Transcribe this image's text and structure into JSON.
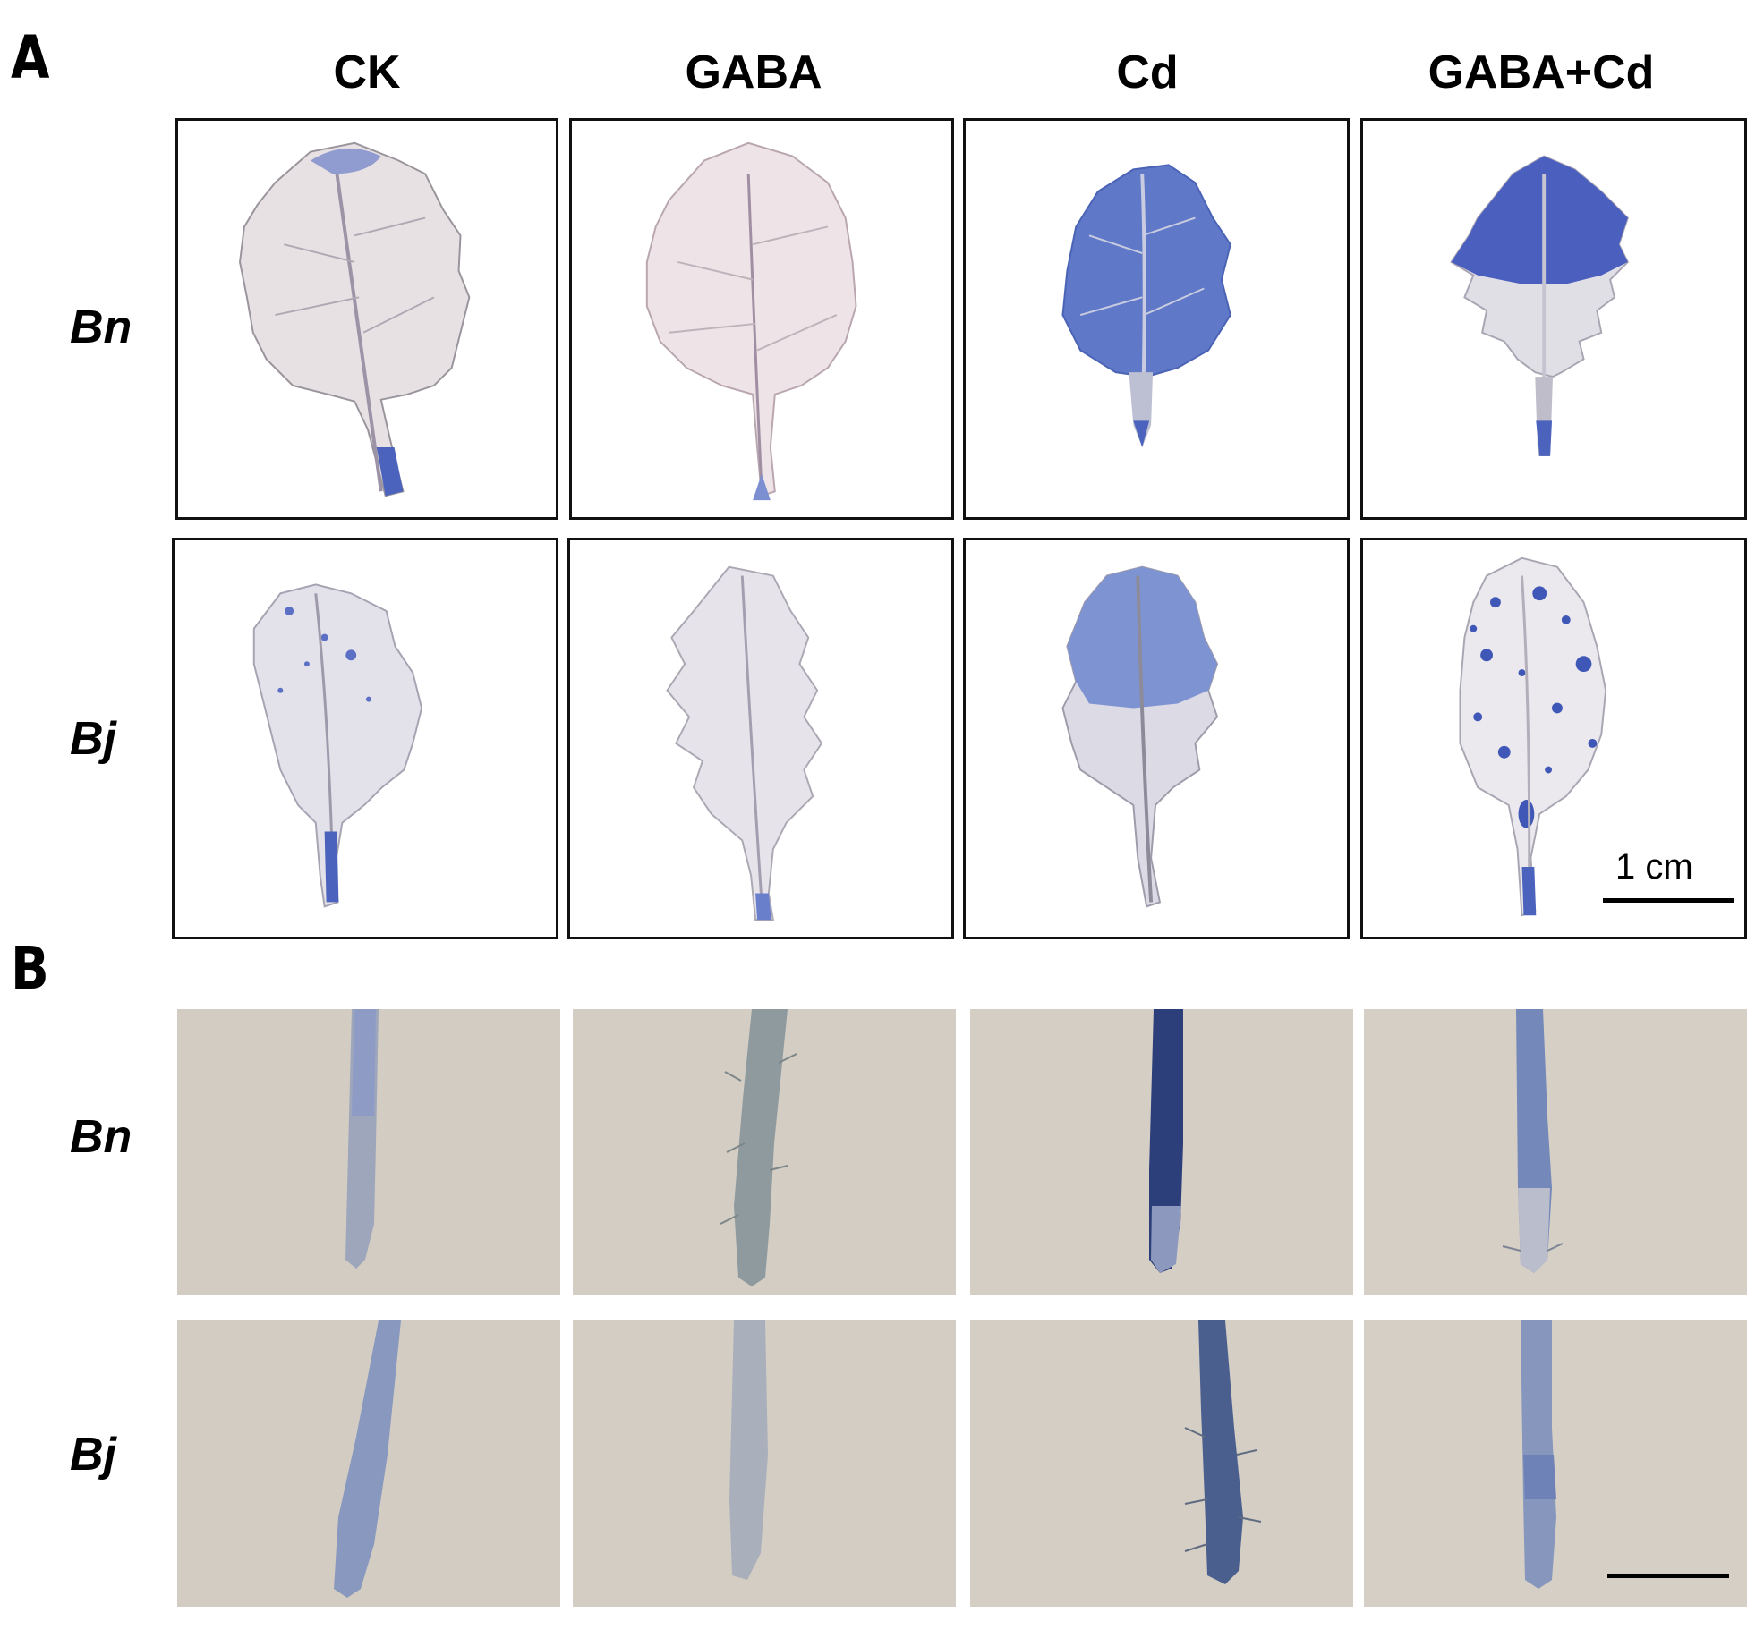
{
  "panels": {
    "a": {
      "letter": "A"
    },
    "b": {
      "letter": "B"
    }
  },
  "columns": [
    "CK",
    "GABA",
    "Cd",
    "GABA+Cd"
  ],
  "rows": {
    "a": [
      "Bn",
      "Bj"
    ],
    "b": [
      "Bn",
      "Bj"
    ]
  },
  "scale_bar": {
    "label": "1 cm"
  },
  "colors": {
    "frame": "#111111",
    "stain_blue": "#3f57b6",
    "leaf_pale": "#ece7ea",
    "root_background": "#d2ccc2"
  },
  "leaves": [
    {
      "treatment": "CK",
      "species": "Bn",
      "staining": "light, blue at tip and petiole"
    },
    {
      "treatment": "GABA",
      "species": "Bn",
      "staining": "none, pinkish leaf"
    },
    {
      "treatment": "Cd",
      "species": "Bn",
      "staining": "strong blue"
    },
    {
      "treatment": "GABA+Cd",
      "species": "Bn",
      "staining": "strong blue upper half"
    },
    {
      "treatment": "CK",
      "species": "Bj",
      "staining": "light blue spots"
    },
    {
      "treatment": "GABA",
      "species": "Bj",
      "staining": "none"
    },
    {
      "treatment": "Cd",
      "species": "Bj",
      "staining": "moderate blue upper half"
    },
    {
      "treatment": "GABA+Cd",
      "species": "Bj",
      "staining": "blue speckles"
    }
  ],
  "roots": [
    {
      "treatment": "CK",
      "species": "Bn",
      "staining": "light"
    },
    {
      "treatment": "GABA",
      "species": "Bn",
      "staining": "none"
    },
    {
      "treatment": "Cd",
      "species": "Bn",
      "staining": "dark blue"
    },
    {
      "treatment": "GABA+Cd",
      "species": "Bn",
      "staining": "moderate"
    },
    {
      "treatment": "CK",
      "species": "Bj",
      "staining": "light"
    },
    {
      "treatment": "GABA",
      "species": "Bj",
      "staining": "none"
    },
    {
      "treatment": "Cd",
      "species": "Bj",
      "staining": "dark blue"
    },
    {
      "treatment": "GABA+Cd",
      "species": "Bj",
      "staining": "moderate"
    }
  ]
}
